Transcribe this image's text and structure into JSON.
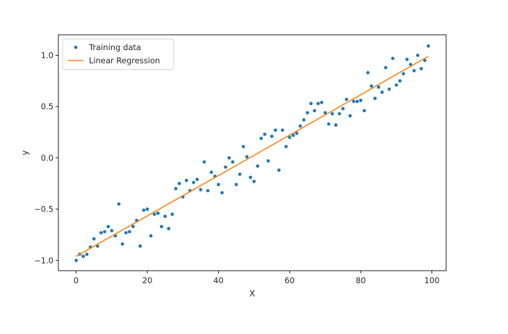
{
  "chart_data": {
    "type": "scatter",
    "title": "",
    "xlabel": "X",
    "ylabel": "y",
    "xlim": [
      -5,
      104
    ],
    "ylim": [
      -1.1,
      1.2
    ],
    "xticks": [
      0,
      20,
      40,
      60,
      80,
      100
    ],
    "xtick_labels": [
      "0",
      "20",
      "40",
      "60",
      "80",
      "100"
    ],
    "yticks": [
      -1.0,
      -0.5,
      0.0,
      0.5,
      1.0
    ],
    "ytick_labels": [
      "−1.0",
      "−0.5",
      "0.0",
      "0.5",
      "1.0"
    ],
    "grid": false,
    "legend_position": "top-left",
    "series": [
      {
        "name": "Training data",
        "kind": "scatter",
        "color": "#1f77b4",
        "x": [
          0,
          1,
          2,
          3,
          4,
          5,
          6,
          7,
          8,
          9,
          10,
          11,
          12,
          13,
          14,
          15,
          16,
          17,
          18,
          19,
          20,
          21,
          22,
          23,
          24,
          25,
          26,
          27,
          28,
          29,
          30,
          31,
          32,
          33,
          34,
          35,
          36,
          37,
          38,
          39,
          40,
          41,
          42,
          43,
          44,
          45,
          46,
          47,
          48,
          49,
          50,
          51,
          52,
          53,
          54,
          55,
          56,
          57,
          58,
          59,
          60,
          61,
          62,
          63,
          64,
          65,
          66,
          67,
          68,
          69,
          70,
          71,
          72,
          73,
          74,
          75,
          76,
          77,
          78,
          79,
          80,
          81,
          82,
          83,
          84,
          85,
          86,
          87,
          88,
          89,
          90,
          91,
          92,
          93,
          94,
          95,
          96,
          97,
          98,
          99
        ],
        "y": [
          -1.0,
          -0.94,
          -0.96,
          -0.94,
          -0.87,
          -0.79,
          -0.86,
          -0.73,
          -0.72,
          -0.67,
          -0.71,
          -0.76,
          -0.45,
          -0.84,
          -0.73,
          -0.72,
          -0.67,
          -0.61,
          -0.86,
          -0.51,
          -0.5,
          -0.76,
          -0.55,
          -0.54,
          -0.67,
          -0.57,
          -0.69,
          -0.55,
          -0.3,
          -0.25,
          -0.38,
          -0.22,
          -0.32,
          -0.24,
          -0.21,
          -0.31,
          -0.04,
          -0.32,
          -0.14,
          -0.18,
          -0.26,
          -0.34,
          -0.09,
          0.0,
          -0.04,
          -0.26,
          -0.16,
          0.11,
          0.01,
          -0.19,
          -0.23,
          -0.08,
          0.19,
          0.23,
          -0.03,
          0.21,
          0.27,
          -0.12,
          0.27,
          0.11,
          0.2,
          0.22,
          0.24,
          0.31,
          0.37,
          0.44,
          0.53,
          0.46,
          0.53,
          0.54,
          0.44,
          0.33,
          0.43,
          0.32,
          0.43,
          0.48,
          0.57,
          0.41,
          0.55,
          0.55,
          0.56,
          0.46,
          0.83,
          0.7,
          0.58,
          0.69,
          0.64,
          0.88,
          0.67,
          0.97,
          0.71,
          0.75,
          0.82,
          0.96,
          0.91,
          0.85,
          1.0,
          0.87,
          0.95,
          1.09
        ]
      },
      {
        "name": "Linear Regression",
        "kind": "line",
        "color": "#ff7f0e",
        "x": [
          0,
          99
        ],
        "y": [
          -0.96,
          0.99
        ]
      }
    ]
  }
}
